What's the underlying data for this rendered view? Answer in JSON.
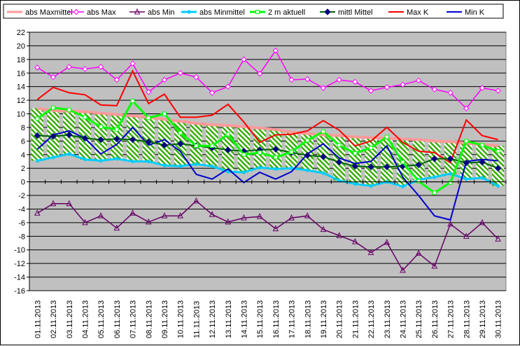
{
  "chart_data": {
    "type": "line",
    "title": "",
    "xlabel": "",
    "ylabel": "",
    "ylim": [
      -16,
      22
    ],
    "y_ticks": [
      22,
      20,
      18,
      16,
      14,
      12,
      10,
      8,
      6,
      4,
      2,
      0,
      -2,
      -4,
      -6,
      -8,
      -10,
      -12,
      -14,
      -16
    ],
    "grid": "horizontal",
    "legend_position": "top",
    "plot_background": "#c0c0c0",
    "band_fill": "hatched green between abs Maxmittel and abs Minmittel",
    "categories": [
      "01.11.2013",
      "02.11.2013",
      "03.11.2013",
      "04.11.2013",
      "05.11.2013",
      "06.11.2013",
      "07.11.2013",
      "08.11.2013",
      "09.11.2013",
      "10.11.2013",
      "11.11.2013",
      "12.11.2013",
      "13.11.2013",
      "14.11.2013",
      "15.11.2013",
      "16.11.2013",
      "17.11.2013",
      "18.11.2013",
      "19.11.2013",
      "20.11.2013",
      "21.11.2013",
      "22.11.2013",
      "23.11.2013",
      "24.11.2013",
      "25.11.2013",
      "26.11.2013",
      "27.11.2013",
      "28.11.2013",
      "29.11.2013",
      "30.11.2013"
    ],
    "series": [
      {
        "name": "abs Maxmittel",
        "color": "#ff9999",
        "marker": "none",
        "values": [
          10.8,
          10.5,
          10.4,
          10.3,
          10.1,
          9.9,
          9.7,
          9.5,
          9.2,
          8.9,
          8.6,
          8.4,
          8.3,
          8.1,
          7.9,
          7.7,
          7.3,
          7.1,
          6.9,
          6.8,
          6.6,
          6.5,
          6.4,
          6.3,
          6.2,
          6.0,
          5.9,
          5.7,
          5.5,
          5.3
        ]
      },
      {
        "name": "abs Max",
        "color": "#ff00ff",
        "marker": "diamond-open",
        "values": [
          16.8,
          15.4,
          16.9,
          16.6,
          16.9,
          15.0,
          17.4,
          13.2,
          15.0,
          16.0,
          15.4,
          13.1,
          14.0,
          18.0,
          15.9,
          19.3,
          15.0,
          15.1,
          13.8,
          15.0,
          14.7,
          13.4,
          13.9,
          14.3,
          14.9,
          13.6,
          13.1,
          10.8,
          13.8,
          13.4
        ]
      },
      {
        "name": "abs Min",
        "color": "#660066",
        "marker": "triangle-open",
        "values": [
          -4.6,
          -3.2,
          -3.2,
          -6.0,
          -5.0,
          -6.8,
          -4.6,
          -5.9,
          -5.0,
          -5.0,
          -2.8,
          -4.8,
          -5.9,
          -5.3,
          -5.1,
          -6.9,
          -5.3,
          -5.0,
          -7.0,
          -7.9,
          -8.8,
          -10.4,
          -8.9,
          -13.0,
          -10.5,
          -12.4,
          -6.2,
          -8.0,
          -6.0,
          -8.4
        ]
      },
      {
        "name": "abs Minmittel",
        "color": "#00ccff",
        "marker": "diamond-filled",
        "values": [
          3.1,
          3.6,
          4.1,
          3.3,
          3.1,
          3.4,
          3.0,
          3.0,
          2.4,
          2.3,
          2.6,
          2.3,
          1.5,
          1.4,
          2.1,
          1.9,
          2.0,
          1.7,
          1.3,
          0.2,
          -0.3,
          -0.6,
          0.0,
          -0.7,
          0.3,
          0.7,
          1.2,
          0.4,
          0.6,
          -0.6
        ]
      },
      {
        "name": "2 m aktuell",
        "color": "#00ff00",
        "marker": "square-open",
        "values": [
          9.3,
          10.9,
          10.6,
          9.5,
          8.1,
          7.7,
          11.9,
          9.4,
          10.0,
          7.2,
          5.3,
          5.3,
          7.0,
          4.0,
          4.3,
          3.6,
          4.4,
          6.1,
          7.4,
          5.4,
          4.2,
          5.0,
          6.6,
          2.9,
          0.1,
          -1.6,
          -0.1,
          6.0,
          5.4,
          4.5
        ]
      },
      {
        "name": "mittl Mittel",
        "color": "#006600",
        "marker": "diamond-navy",
        "values": [
          6.8,
          6.7,
          6.9,
          6.4,
          6.2,
          6.3,
          6.2,
          5.9,
          5.4,
          5.6,
          5.3,
          5.0,
          4.7,
          4.5,
          4.7,
          4.8,
          4.3,
          3.9,
          3.7,
          2.9,
          2.3,
          2.2,
          2.2,
          2.3,
          2.5,
          3.4,
          3.4,
          2.8,
          2.9,
          2.0
        ]
      },
      {
        "name": "Max K",
        "color": "#ff0000",
        "marker": "none",
        "values": [
          12.1,
          13.9,
          13.1,
          12.8,
          11.3,
          11.2,
          16.3,
          11.5,
          12.9,
          9.5,
          9.5,
          9.8,
          11.4,
          8.8,
          5.8,
          6.9,
          7.0,
          7.5,
          9.0,
          7.6,
          5.3,
          6.0,
          8.0,
          5.8,
          4.5,
          4.3,
          2.8,
          9.1,
          6.8,
          6.2
        ]
      },
      {
        "name": "Min K",
        "color": "#0000cc",
        "marker": "none",
        "values": [
          4.8,
          6.9,
          7.5,
          6.4,
          4.1,
          5.5,
          8.0,
          5.4,
          6.2,
          4.5,
          1.1,
          0.4,
          1.9,
          -0.1,
          1.4,
          0.4,
          1.5,
          4.1,
          5.6,
          3.5,
          2.7,
          3.0,
          5.3,
          0.7,
          -2.0,
          -5.0,
          -5.6,
          3.0,
          3.3,
          3.1
        ]
      }
    ]
  }
}
